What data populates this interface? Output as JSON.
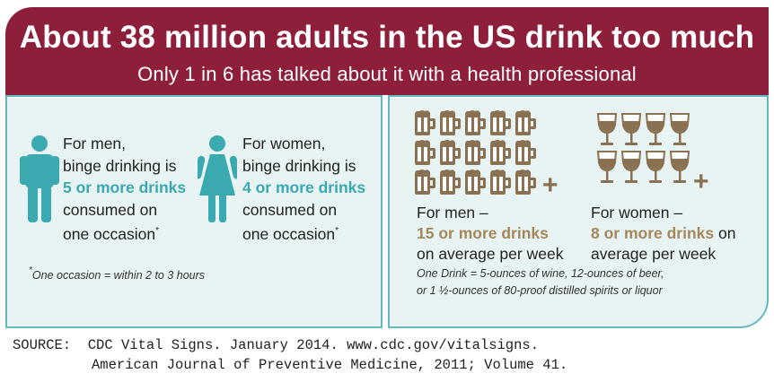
{
  "header": {
    "title": "About 38 million adults in the US drink too much",
    "subtitle": "Only 1 in 6 has talked about it with a health professional"
  },
  "binge": {
    "men": {
      "line1": "For men,",
      "line2": "binge drinking is",
      "amount": "5 or more drinks",
      "line4": "consumed on",
      "line5": "one occasion",
      "asterisk": "*",
      "icon": "man-icon"
    },
    "women": {
      "line1": "For women,",
      "line2": "binge drinking is",
      "amount": "4 or more drinks",
      "line4": "consumed on",
      "line5": "one occasion",
      "asterisk": "*",
      "icon": "woman-icon"
    },
    "footnote_mark": "*",
    "footnote": "One occasion = within 2 to 3 hours"
  },
  "weekly": {
    "men": {
      "label": "For men –",
      "amount": "15 or more drinks",
      "per": "on average per week",
      "icon": "beer-mug-icon",
      "mug_count": 15
    },
    "women": {
      "label": "For women –",
      "amount": "8 or more drinks",
      "on": " on",
      "per": "average per week",
      "icon": "wine-glass-icon",
      "glass_count": 8
    },
    "plus": "+",
    "definition_line1": "One Drink = 5-ounces of wine, 12-ounces of beer,",
    "definition_line2": "or 1 ½-ounces of 80-proof distilled spirits or liquor"
  },
  "colors": {
    "banner": "#8e1f3b",
    "teal": "#3aa9b0",
    "panel": "#e8f3f4",
    "olive": "#a4885a"
  },
  "source": {
    "label": "SOURCE:",
    "line1": "CDC Vital Signs. January 2014. www.cdc.gov/vitalsigns.",
    "line2": "American Journal of Preventive Medicine, 2011; Volume 41."
  }
}
